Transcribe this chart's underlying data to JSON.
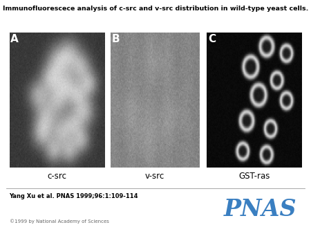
{
  "title": "Immunofluorescece analysis of c-src and v-src distribution in wild-type yeast cells.",
  "title_fontsize": 6.8,
  "title_fontweight": "bold",
  "panel_labels": [
    "A",
    "B",
    "C"
  ],
  "panel_captions": [
    "c-src",
    "v-src",
    "GST-ras"
  ],
  "caption_fontsize": 8.5,
  "panel_label_fontsize": 11,
  "citation": "Yang Xu et al. PNAS 1999;96:1:109-114",
  "citation_fontsize": 6.0,
  "citation_fontweight": "bold",
  "copyright": "©1999 by National Academy of Sciences",
  "copyright_fontsize": 5.0,
  "pnas_text": "PNAS",
  "pnas_color": "#3a7fc1",
  "pnas_fontsize": 24,
  "white": "#ffffff"
}
